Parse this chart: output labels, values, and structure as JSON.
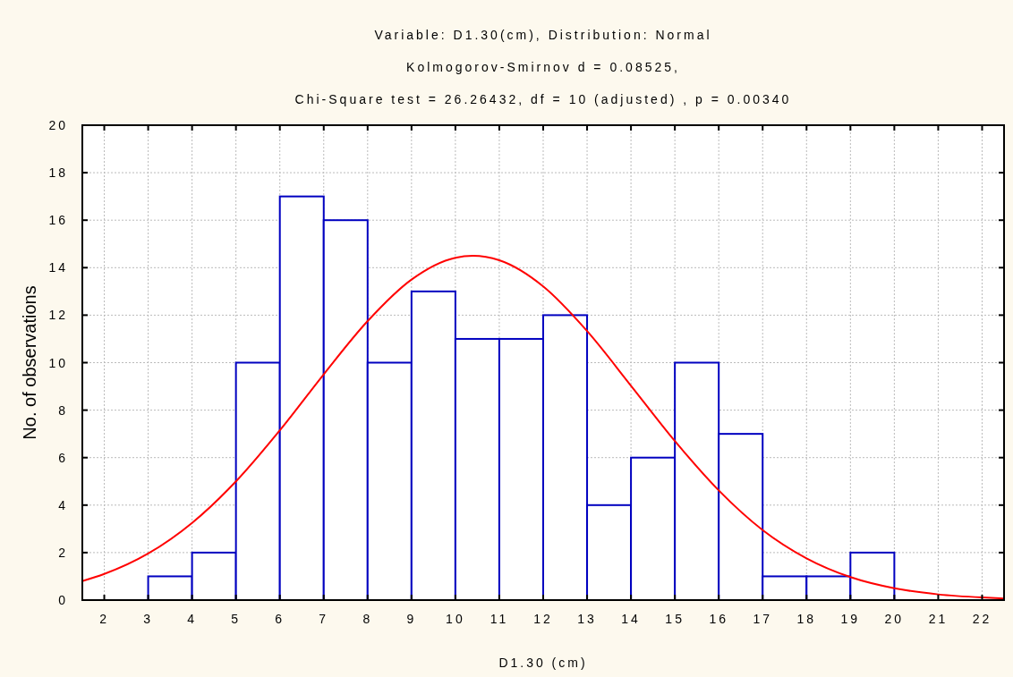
{
  "chart_data": {
    "type": "histogram",
    "title": "Variable: D1.30(cm), Distribution: Normal",
    "subtitle": "Kolmogorov-Smirnov d = 0.08525,\nChi-Square test = 26.26432, df = 10 (adjusted) , p = 0.00340",
    "xlabel": "D1.30 (cm)",
    "ylabel": "No. of observations",
    "xlim": [
      1.5,
      22.5
    ],
    "xticks": [
      2,
      3,
      4,
      5,
      6,
      7,
      8,
      9,
      10,
      11,
      12,
      13,
      14,
      15,
      16,
      17,
      18,
      19,
      20,
      21,
      22
    ],
    "ylim": [
      0,
      20
    ],
    "yticks": [
      0,
      2,
      4,
      6,
      8,
      10,
      12,
      14,
      16,
      18,
      20
    ],
    "grid": true,
    "color": "#0000c0",
    "bins": [
      3,
      4,
      5,
      6,
      7,
      8,
      9,
      10,
      11,
      12,
      13,
      14,
      15,
      16,
      17,
      18,
      19,
      20
    ],
    "values": [
      1,
      2,
      10,
      17,
      16,
      10,
      13,
      11,
      11,
      12,
      4,
      6,
      10,
      7,
      1,
      1,
      2
    ],
    "series": [
      {
        "type": "line",
        "color": "#ff0000",
        "x": [
          1.5,
          2,
          3,
          4,
          5,
          6,
          7,
          8,
          9,
          10,
          10.4,
          11,
          12,
          13,
          14,
          15,
          16,
          17,
          18,
          19,
          20,
          21,
          22,
          22.5
        ],
        "values": [
          0.8,
          1.1,
          1.96,
          3.25,
          5.0,
          7.15,
          9.51,
          11.75,
          13.5,
          14.42,
          14.5,
          14.31,
          13.21,
          11.33,
          9.03,
          6.7,
          4.62,
          2.95,
          1.76,
          0.97,
          0.5,
          0.24,
          0.11,
          0.07
        ]
      }
    ]
  }
}
